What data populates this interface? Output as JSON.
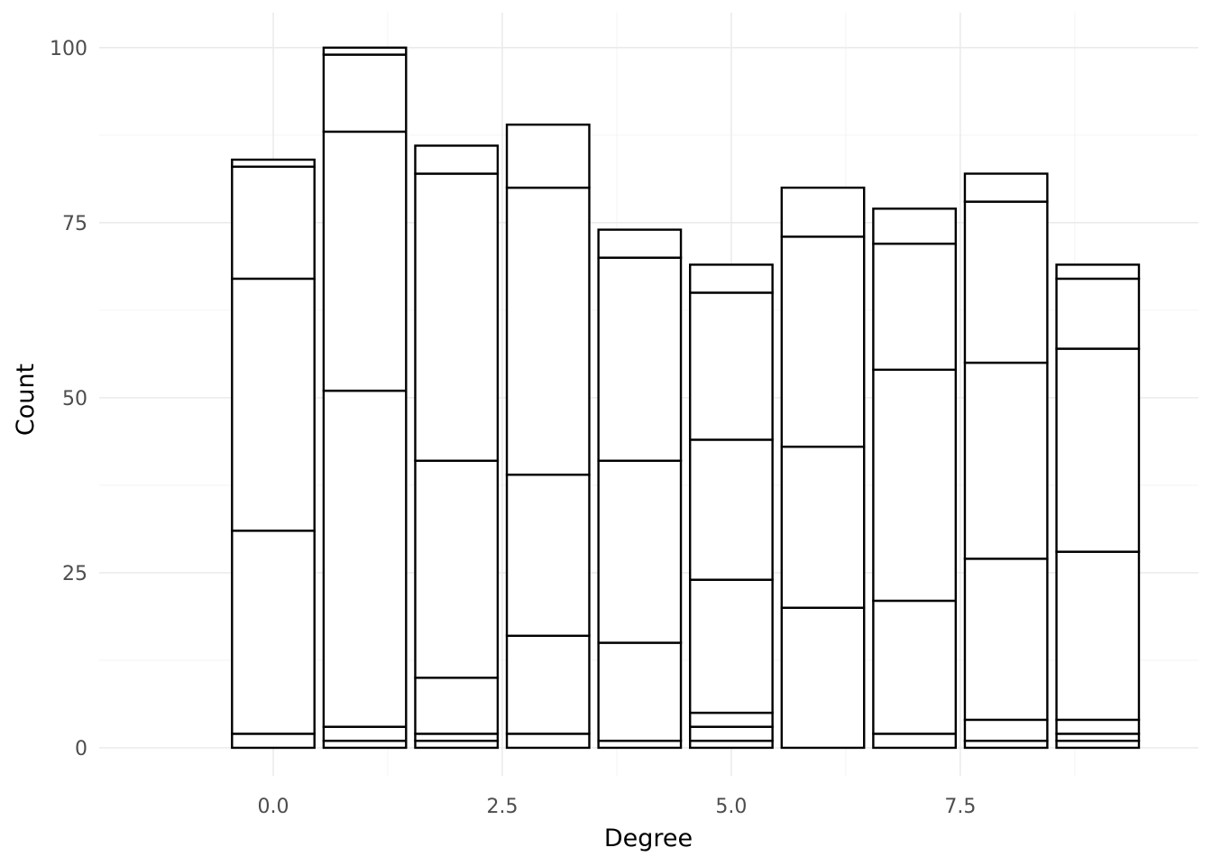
{
  "chart_data": {
    "type": "bar",
    "stacked": true,
    "title": "",
    "xlabel": "Degree",
    "ylabel": "Count",
    "x": [
      0,
      1,
      2,
      3,
      4,
      5,
      6,
      7,
      8,
      9
    ],
    "stack_boundaries": [
      [
        0,
        2,
        31,
        67,
        83,
        84
      ],
      [
        0,
        1,
        3,
        51,
        88,
        99,
        100
      ],
      [
        0,
        1,
        2,
        10,
        41,
        82,
        86
      ],
      [
        0,
        2,
        16,
        39,
        80,
        89
      ],
      [
        0,
        1,
        15,
        41,
        70,
        74
      ],
      [
        0,
        1,
        3,
        5,
        24,
        44,
        65,
        69
      ],
      [
        0,
        20,
        43,
        73,
        80
      ],
      [
        0,
        2,
        21,
        54,
        72,
        77
      ],
      [
        0,
        1,
        4,
        27,
        55,
        78,
        82
      ],
      [
        0,
        1,
        2,
        4,
        28,
        57,
        67,
        69
      ]
    ],
    "totals": [
      84,
      100,
      86,
      89,
      74,
      69,
      80,
      77,
      82,
      69
    ],
    "xlim": [
      -1.9,
      10.1
    ],
    "ylim": [
      -4,
      105
    ],
    "x_ticks": [
      0.0,
      2.5,
      5.0,
      7.5
    ],
    "x_tick_labels": [
      "0.0",
      "2.5",
      "5.0",
      "7.5"
    ],
    "y_ticks": [
      0,
      25,
      50,
      75,
      100
    ],
    "y_tick_labels": [
      "0",
      "25",
      "50",
      "75",
      "100"
    ],
    "bar_fill": "#ffffff",
    "bar_outline": "#000000",
    "grid": true,
    "legend": "none"
  }
}
